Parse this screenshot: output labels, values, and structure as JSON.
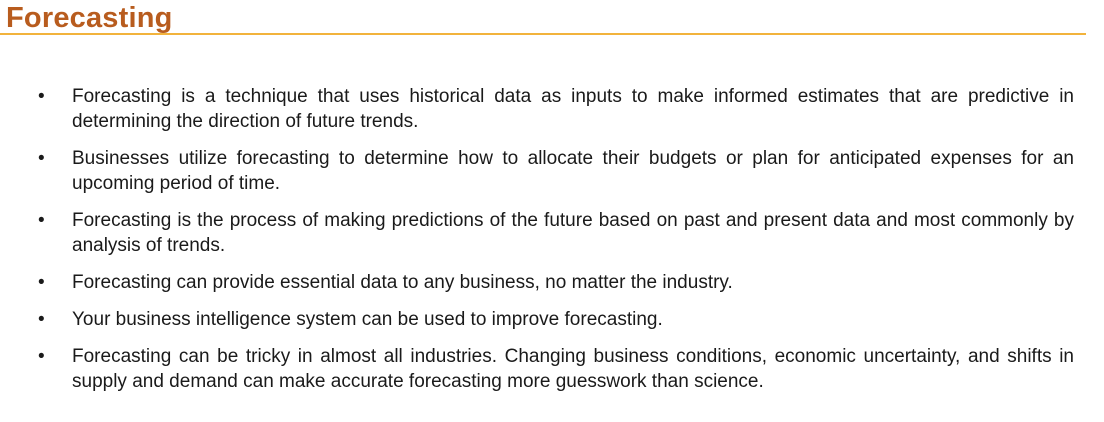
{
  "slide": {
    "title": "Forecasting",
    "title_color": "#b85c1e",
    "rule_color": "#f2b33c",
    "bullet_glyph": "•",
    "bullets": [
      "Forecasting is a technique that uses historical data as inputs to make informed estimates that are predictive in determining the direction of future trends.",
      "Businesses utilize forecasting to determine how to allocate their budgets or plan for anticipated expenses for an upcoming period of time.",
      "Forecasting is the process of making predictions of the future based on past and present data and most commonly by analysis of trends.",
      "Forecasting can provide essential data to any business, no matter the industry.",
      "Your business intelligence system can be used to improve forecasting.",
      "Forecasting can be tricky in almost all industries. Changing business conditions, economic uncertainty, and shifts in supply and demand can make accurate forecasting more guesswork than science."
    ]
  }
}
